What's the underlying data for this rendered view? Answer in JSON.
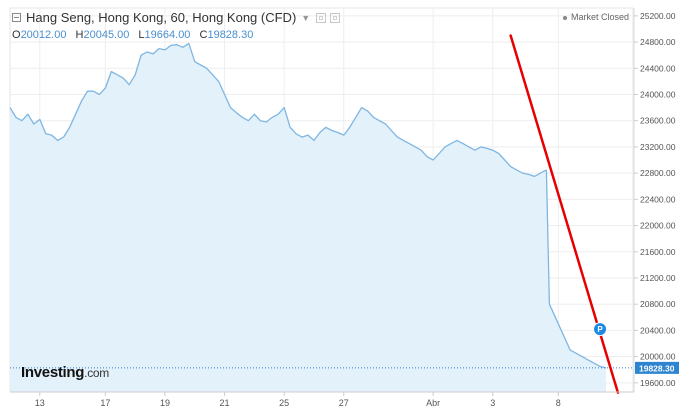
{
  "header": {
    "title": "Hang Seng, Hong Kong, 60, Hong Kong (CFD)",
    "open_label": "O",
    "open_value": "20012.00",
    "high_label": "H",
    "high_value": "20045.00",
    "low_label": "L",
    "low_value": "19664.00",
    "close_label": "C",
    "close_value": "19828.30",
    "market_status": "Market Closed"
  },
  "watermark": {
    "brand": "Investing",
    "suffix": ".com"
  },
  "colors": {
    "price_line": "#7fb6e2",
    "price_fill": "#e3f1fa",
    "trend_line": "#e60000",
    "price_tag": "#2d84d0",
    "marker": "#1e88e5"
  },
  "chart_data": {
    "type": "area",
    "x_categories": [
      "13",
      "17",
      "19",
      "21",
      "25",
      "27",
      "Abr",
      "3",
      "8"
    ],
    "x_axis_domain": [
      0,
      100
    ],
    "category_positions": [
      5,
      16,
      26,
      36,
      46,
      56,
      71,
      81,
      92
    ],
    "yticks": [
      19600,
      20000,
      20400,
      20800,
      21200,
      21600,
      22000,
      22400,
      22800,
      23200,
      23600,
      24000,
      24400,
      24800,
      25200
    ],
    "ylim": [
      19460,
      25320
    ],
    "grid": true,
    "series": [
      {
        "x": [
          0,
          1,
          2,
          3,
          4,
          5,
          6,
          7,
          8,
          9,
          10,
          11,
          12,
          13,
          14,
          15,
          16,
          17,
          18,
          19,
          20,
          21,
          22,
          23,
          24,
          25,
          26,
          27,
          28,
          29,
          30,
          31,
          32,
          33,
          34,
          35,
          36,
          37,
          38,
          39,
          40,
          41,
          42,
          43,
          44,
          45,
          46,
          47,
          48,
          49,
          50,
          51,
          52,
          53,
          54,
          55,
          56,
          57,
          58,
          59,
          60,
          61,
          62,
          63,
          64,
          65,
          66,
          67,
          68,
          69,
          70,
          71,
          72,
          73,
          74,
          75,
          76,
          77,
          78,
          79,
          80,
          81,
          82,
          83,
          84,
          85,
          86,
          87,
          88,
          89,
          90
        ],
        "y": [
          23800,
          23650,
          23600,
          23700,
          23550,
          23620,
          23400,
          23380,
          23300,
          23350,
          23500,
          23700,
          23900,
          24050,
          24050,
          24000,
          24100,
          24350,
          24300,
          24250,
          24150,
          24300,
          24600,
          24650,
          24620,
          24700,
          24680,
          24750,
          24760,
          24720,
          24780,
          24500,
          24450,
          24400,
          24300,
          24200,
          24000,
          23800,
          23720,
          23650,
          23600,
          23700,
          23600,
          23580,
          23650,
          23700,
          23800,
          23500,
          23400,
          23350,
          23380,
          23300,
          23420,
          23500,
          23450,
          23420,
          23380,
          23500,
          23650,
          23800,
          23750,
          23650,
          23600,
          23550,
          23450,
          23350,
          23300,
          23250,
          23200,
          23150,
          23050,
          23000,
          23100,
          23200,
          23250,
          23300,
          23250,
          23200,
          23150,
          23200,
          23180,
          23150,
          23100,
          23000,
          22900,
          22850,
          22800,
          22780,
          22750,
          22800,
          22850
        ]
      },
      {
        "x": [
          90,
          90.5,
          91,
          92,
          93,
          94,
          95,
          96,
          97,
          98,
          99,
          100
        ],
        "y": [
          22850,
          20800,
          20700,
          20500,
          20300,
          20100,
          20050,
          20000,
          19950,
          19900,
          19850,
          19828.3
        ]
      }
    ],
    "trendline": {
      "from": {
        "x": 84,
        "y": 24900
      },
      "to": {
        "x": 102,
        "y": 19450
      }
    },
    "last_price": {
      "value": "19828.30",
      "y": 19828.3
    },
    "marker": {
      "label": "P",
      "x": 99,
      "y": 20420
    }
  }
}
